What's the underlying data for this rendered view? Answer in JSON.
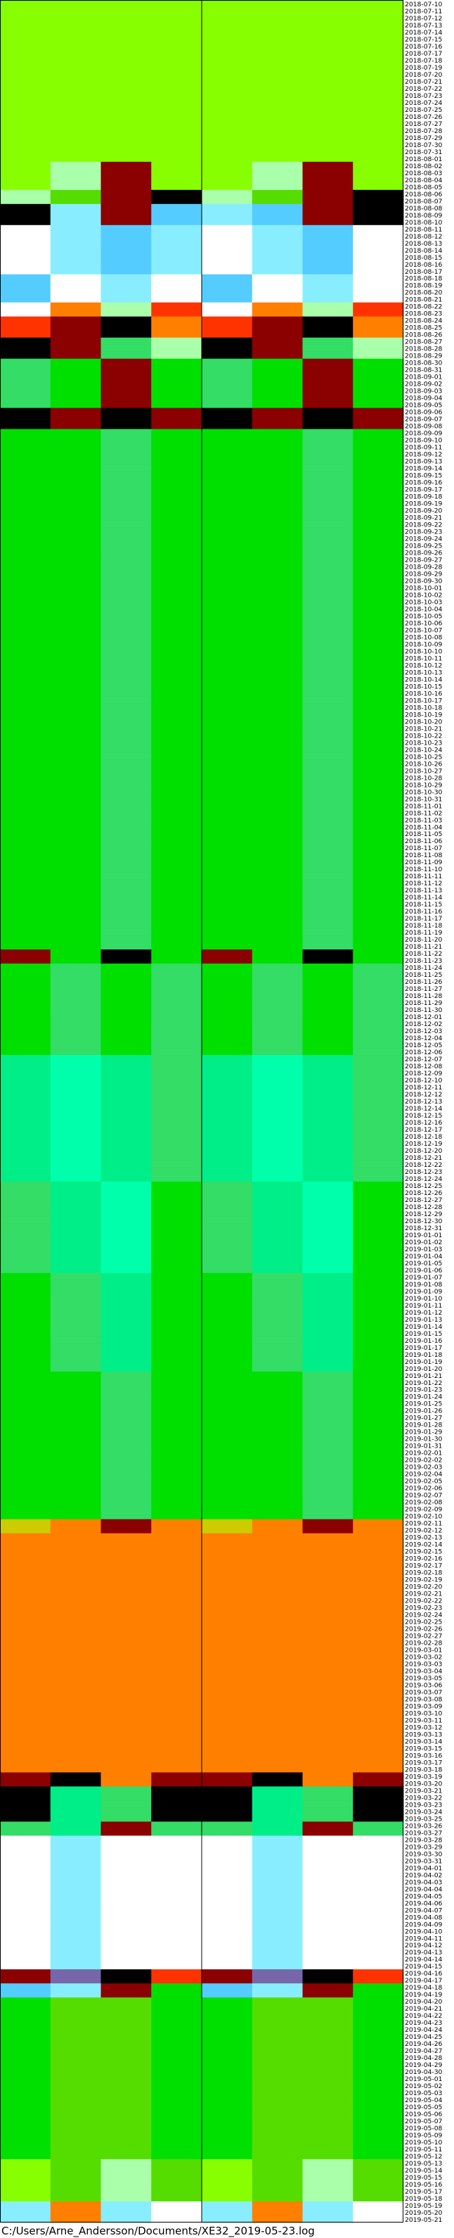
{
  "footer": {
    "file_path": "C:/Users/Arne_Andersson/Documents/XE32_2019-05-23.log"
  },
  "chart_data": {
    "type": "heatmap",
    "title": "",
    "xlabel": "",
    "ylabel": "",
    "date_start": "2018-07-10",
    "date_end": "2019-05-21",
    "grid": false,
    "legend": "none",
    "colors": {
      "A": "#88ff00",
      "B": "#55dd00",
      "C": "#00e000",
      "D": "#33dd66",
      "E": "#00ee88",
      "F": "#00ffaa",
      "G": "#aaffaa",
      "H": "#88eeff",
      "I": "#55ccff",
      "J": "#ffffff",
      "K": "#ff8000",
      "L": "#8b0000",
      "M": "#000000",
      "N": "#ff3300",
      "O": "#cccc00",
      "P": "#7766aa"
    },
    "segments": [
      {
        "from": "2018-07-10",
        "to": "2018-08-01",
        "pattern": "A"
      },
      {
        "from": "2018-08-02",
        "to": "2018-08-05",
        "pattern": "AGLAAGLA"
      },
      {
        "from": "2018-08-06",
        "to": "2018-08-07",
        "pattern": "GBLMGBLM"
      },
      {
        "from": "2018-08-08",
        "to": "2018-08-10",
        "pattern": "MHLIHILM"
      },
      {
        "from": "2018-08-11",
        "to": "2018-08-17",
        "pattern": "JHIHJHIJ"
      },
      {
        "from": "2018-08-18",
        "to": "2018-08-21",
        "pattern": "IJHJIJHJ"
      },
      {
        "from": "2018-08-22",
        "to": "2018-08-23",
        "pattern": "JKGNJKGN"
      },
      {
        "from": "2018-08-24",
        "to": "2018-08-26",
        "pattern": "NLMKNLMK"
      },
      {
        "from": "2018-08-27",
        "to": "2018-08-29",
        "pattern": "MLDGMLDG"
      },
      {
        "from": "2018-08-30",
        "to": "2018-09-05",
        "pattern": "DCLCDCLC"
      },
      {
        "from": "2018-09-06",
        "to": "2018-09-08",
        "pattern": "MLMLMLML"
      },
      {
        "from": "2018-09-09",
        "to": "2018-11-21",
        "pattern": "CCDCCCDC"
      },
      {
        "from": "2018-11-22",
        "to": "2018-11-23",
        "pattern": "LCMCLCMC"
      },
      {
        "from": "2018-11-24",
        "to": "2018-12-06",
        "pattern": "CDCDCDCD"
      },
      {
        "from": "2018-12-07",
        "to": "2018-12-24",
        "pattern": "EFEDEFED"
      },
      {
        "from": "2018-12-25",
        "to": "2019-01-06",
        "pattern": "DEFCDEFC"
      },
      {
        "from": "2019-01-07",
        "to": "2019-01-20",
        "pattern": "CDECCDEC"
      },
      {
        "from": "2019-01-21",
        "to": "2019-02-10",
        "pattern": "CCDCCCDC"
      },
      {
        "from": "2019-02-11",
        "to": "2019-02-12",
        "pattern": "OKLKOKLK"
      },
      {
        "from": "2019-02-13",
        "to": "2019-03-18",
        "pattern": "K"
      },
      {
        "from": "2019-03-19",
        "to": "2019-03-20",
        "pattern": "LMKLLMKL"
      },
      {
        "from": "2019-03-21",
        "to": "2019-03-25",
        "pattern": "MEDMMEDM"
      },
      {
        "from": "2019-03-26",
        "to": "2019-03-27",
        "pattern": "DELDDELD"
      },
      {
        "from": "2019-03-28",
        "to": "2019-04-15",
        "pattern": "JHJJJHJJ"
      },
      {
        "from": "2019-04-16",
        "to": "2019-04-17",
        "pattern": "LPMNLPMN"
      },
      {
        "from": "2019-04-18",
        "to": "2019-04-19",
        "pattern": "IHLCIHLC"
      },
      {
        "from": "2019-04-20",
        "to": "2019-05-12",
        "pattern": "CBBCCBBC"
      },
      {
        "from": "2019-05-13",
        "to": "2019-05-18",
        "pattern": "ABGBABGB"
      },
      {
        "from": "2019-05-19",
        "to": "2019-05-21",
        "pattern": "HKHJHKHJ"
      }
    ]
  }
}
